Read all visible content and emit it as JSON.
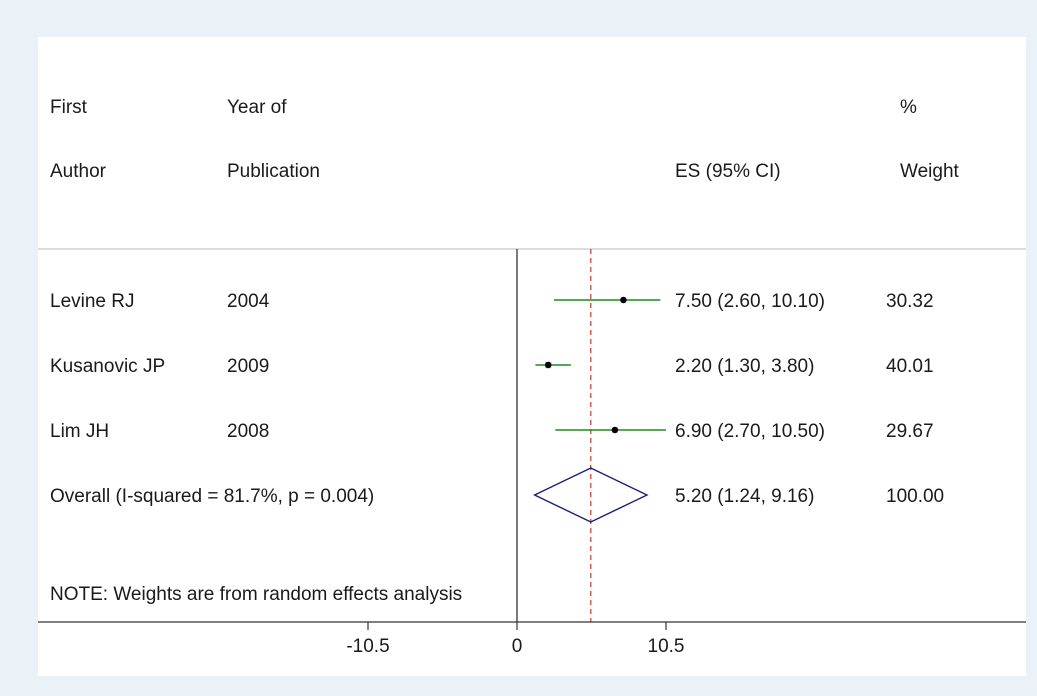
{
  "chart_data": {
    "type": "forest",
    "headers": {
      "col1": [
        "First",
        "Author"
      ],
      "col2": [
        "Year of",
        "Publication"
      ],
      "es": "ES (95% CI)",
      "weight": [
        "%",
        "Weight"
      ]
    },
    "studies": [
      {
        "author": "Levine RJ",
        "year": "2004",
        "es": 7.5,
        "lo": 2.6,
        "hi": 10.1,
        "es_label": "7.50 (2.60, 10.10)",
        "weight": 30.32,
        "weight_label": "30.32"
      },
      {
        "author": "Kusanovic JP",
        "year": "2009",
        "es": 2.2,
        "lo": 1.3,
        "hi": 3.8,
        "es_label": "2.20 (1.30, 3.80)",
        "weight": 40.01,
        "weight_label": "40.01"
      },
      {
        "author": "Lim JH",
        "year": "2008",
        "es": 6.9,
        "lo": 2.7,
        "hi": 10.5,
        "es_label": "6.90 (2.70, 10.50)",
        "weight": 29.67,
        "weight_label": "29.67"
      }
    ],
    "overall": {
      "label": "Overall  (I-squared = 81.7%, p = 0.004)",
      "es": 5.2,
      "lo": 1.24,
      "hi": 9.16,
      "es_label": "5.20 (1.24, 9.16)",
      "weight_label": "100.00"
    },
    "note": "NOTE: Weights are from random effects analysis",
    "x_ticks": [
      -10.5,
      0,
      10.5
    ],
    "x_tick_labels": [
      "-10.5",
      "0",
      "10.5"
    ],
    "xlim": [
      -10.5,
      10.5
    ],
    "null_value": 0,
    "colors": {
      "ci_line": "#1e8a1e",
      "diamond": "#1c1c7a",
      "overall_line": "#c0392b",
      "point": "#000000",
      "axis": "#333333"
    }
  }
}
